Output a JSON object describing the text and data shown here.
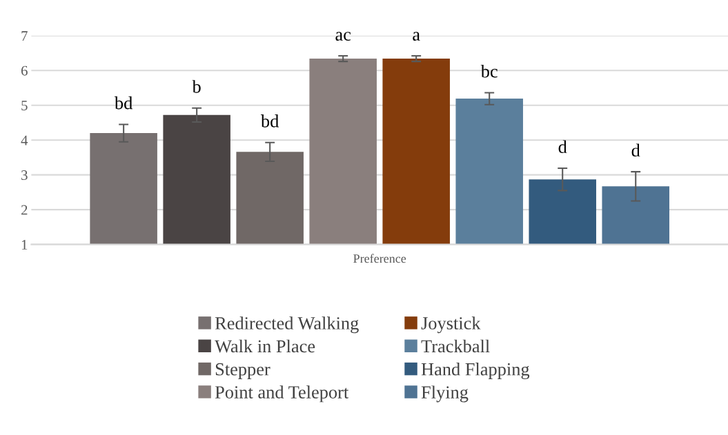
{
  "chart_data": {
    "type": "bar",
    "categories": [
      "Preference"
    ],
    "series": [
      {
        "name": "Redirected Walking",
        "color": "#777070",
        "values": [
          4.2
        ],
        "errors": [
          0.25
        ]
      },
      {
        "name": "Walk in Place",
        "color": "#4a4444",
        "values": [
          4.72
        ],
        "errors": [
          0.2
        ]
      },
      {
        "name": "Stepper",
        "color": "#706866",
        "values": [
          3.66
        ],
        "errors": [
          0.27
        ]
      },
      {
        "name": "Point and Teleport",
        "color": "#8a7f7d",
        "values": [
          6.34
        ],
        "errors": [
          0.08
        ]
      },
      {
        "name": "Joystick",
        "color": "#843c0c",
        "values": [
          6.34
        ],
        "errors": [
          0.08
        ]
      },
      {
        "name": "Trackball",
        "color": "#5b7f9c",
        "values": [
          5.19
        ],
        "errors": [
          0.17
        ]
      },
      {
        "name": "Hand Flapping",
        "color": "#335b7e",
        "values": [
          2.87
        ],
        "errors": [
          0.32
        ]
      },
      {
        "name": "Flying",
        "color": "#4f7393",
        "values": [
          2.67
        ],
        "errors": [
          0.42
        ]
      }
    ],
    "annotations": [
      "bd",
      "b",
      "bd",
      "ac",
      "a",
      "bc",
      "d",
      "d"
    ],
    "ylim": [
      1,
      7
    ],
    "yticks": [
      1,
      2,
      3,
      4,
      5,
      6,
      7
    ],
    "grid": "y",
    "legend": "bottom"
  }
}
